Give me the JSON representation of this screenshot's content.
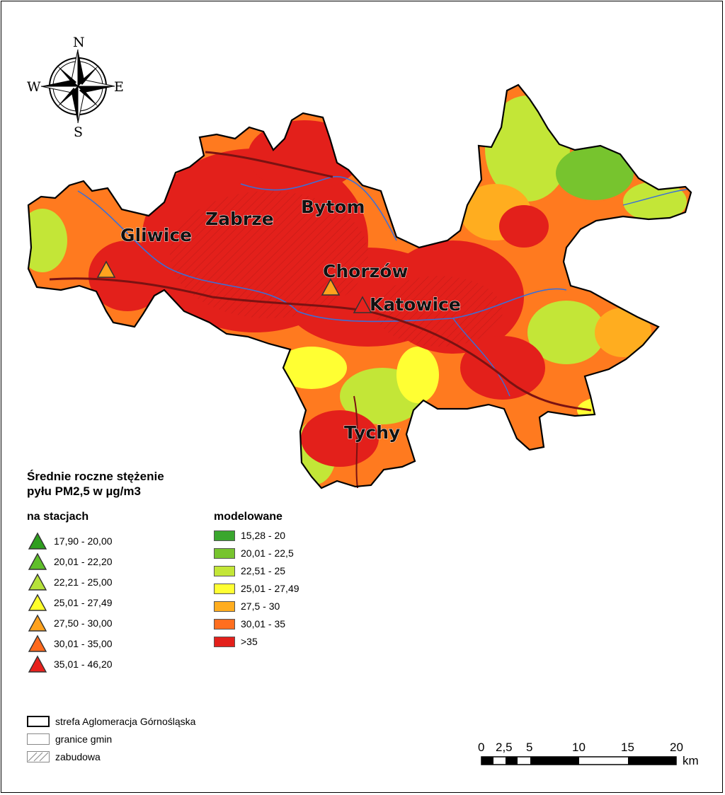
{
  "compass": {
    "n": "N",
    "s": "S",
    "w": "W",
    "e": "E"
  },
  "cities": [
    {
      "name": "Gliwice"
    },
    {
      "name": "Zabrze"
    },
    {
      "name": "Bytom"
    },
    {
      "name": "Chorzów"
    },
    {
      "name": "Katowice"
    },
    {
      "name": "Tychy"
    }
  ],
  "legend": {
    "title_line1": "Średnie roczne stężenie",
    "title_line2": "pyłu PM2,5  w µg/m3",
    "stations_heading": "na stacjach",
    "stations": [
      {
        "label": "17,90 - 20,00",
        "color": "#2e9e1e"
      },
      {
        "label": "20,01 - 22,20",
        "color": "#5fbf2a"
      },
      {
        "label": "22,21 - 25,00",
        "color": "#b6e23a"
      },
      {
        "label": "25,01 - 27,49",
        "color": "#ffff2a"
      },
      {
        "label": "27,50 - 30,00",
        "color": "#ffa21e"
      },
      {
        "label": "30,01 - 35,00",
        "color": "#ff6a1e"
      },
      {
        "label": "35,01 - 46,20",
        "color": "#e8211d"
      }
    ],
    "modeled_heading": "modelowane",
    "modeled": [
      {
        "label": "15,28 - 20",
        "color": "#3aa62e"
      },
      {
        "label": "20,01 - 22,5",
        "color": "#77c42e"
      },
      {
        "label": "22,51 - 25",
        "color": "#c3e637"
      },
      {
        "label": "25,01 - 27,49",
        "color": "#ffff33"
      },
      {
        "label": "27,5 - 30",
        "color": "#ffad1f"
      },
      {
        "label": "30,01 - 35",
        "color": "#ff6e1f"
      },
      {
        "label": ">35",
        "color": "#e3201b"
      }
    ],
    "boundaries": [
      {
        "label": "strefa Aglomeracja Górnośląska"
      },
      {
        "label": "granice gmin"
      },
      {
        "label": "zabudowa"
      }
    ]
  },
  "scale_bar": {
    "ticks": [
      "0",
      "2,5",
      "5",
      "10",
      "15",
      "20"
    ],
    "unit": "km"
  }
}
